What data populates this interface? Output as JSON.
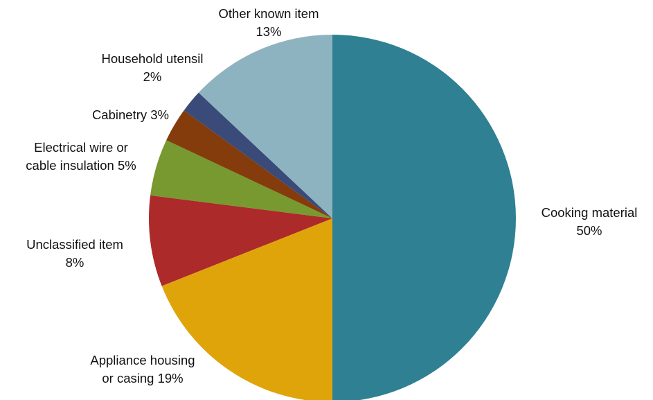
{
  "chart_data": {
    "type": "pie",
    "title": "",
    "start": "12 o'clock",
    "direction": "clockwise",
    "slices": [
      {
        "label": "Cooking material",
        "value": 50,
        "display": [
          "Cooking material",
          "50%"
        ],
        "color": "#2F8093"
      },
      {
        "label": "Appliance housing or casing",
        "value": 19,
        "display": [
          "Appliance housing",
          "or casing 19%"
        ],
        "color": "#E0A40B"
      },
      {
        "label": "Unclassified item",
        "value": 8,
        "display": [
          "Unclassified item",
          "8%"
        ],
        "color": "#AC2A2A"
      },
      {
        "label": "Electrical wire or cable insulation",
        "value": 5,
        "display": [
          "Electrical wire or",
          "cable insulation 5%"
        ],
        "color": "#77992F"
      },
      {
        "label": "Cabinetry",
        "value": 3,
        "display": [
          "Cabinetry 3%"
        ],
        "color": "#843C0C"
      },
      {
        "label": "Household utensil",
        "value": 2,
        "display": [
          "Household utensil",
          "2%"
        ],
        "color": "#3A4A79"
      },
      {
        "label": "Other known item",
        "value": 13,
        "display": [
          "Other known item",
          "13%"
        ],
        "color": "#8DB3C1"
      }
    ]
  }
}
